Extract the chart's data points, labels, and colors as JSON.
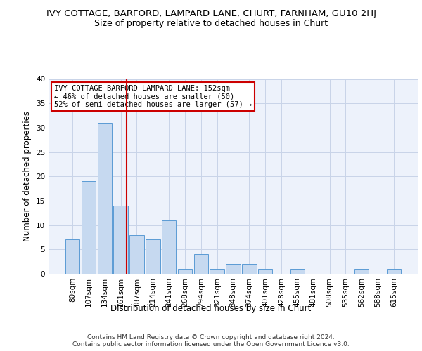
{
  "title": "IVY COTTAGE, BARFORD, LAMPARD LANE, CHURT, FARNHAM, GU10 2HJ",
  "subtitle": "Size of property relative to detached houses in Churt",
  "xlabel": "Distribution of detached houses by size in Churt",
  "ylabel": "Number of detached properties",
  "categories": [
    "80sqm",
    "107sqm",
    "134sqm",
    "161sqm",
    "187sqm",
    "214sqm",
    "241sqm",
    "268sqm",
    "294sqm",
    "321sqm",
    "348sqm",
    "374sqm",
    "401sqm",
    "428sqm",
    "455sqm",
    "481sqm",
    "508sqm",
    "535sqm",
    "562sqm",
    "588sqm",
    "615sqm"
  ],
  "values": [
    7,
    19,
    31,
    14,
    8,
    7,
    11,
    1,
    4,
    1,
    2,
    2,
    1,
    0,
    1,
    0,
    0,
    0,
    1,
    0,
    1
  ],
  "bar_color": "#c6d9f0",
  "bar_edge_color": "#5b9bd5",
  "red_line_index": 3,
  "red_line_color": "#cc0000",
  "annotation_text": "IVY COTTAGE BARFORD LAMPARD LANE: 152sqm\n← 46% of detached houses are smaller (50)\n52% of semi-detached houses are larger (57) →",
  "annotation_box_edge": "#cc0000",
  "ylim": [
    0,
    40
  ],
  "yticks": [
    0,
    5,
    10,
    15,
    20,
    25,
    30,
    35,
    40
  ],
  "footer": "Contains HM Land Registry data © Crown copyright and database right 2024.\nContains public sector information licensed under the Open Government Licence v3.0.",
  "title_fontsize": 9.5,
  "subtitle_fontsize": 9,
  "axis_label_fontsize": 8.5,
  "tick_fontsize": 7.5,
  "annotation_fontsize": 7.5,
  "footer_fontsize": 6.5
}
